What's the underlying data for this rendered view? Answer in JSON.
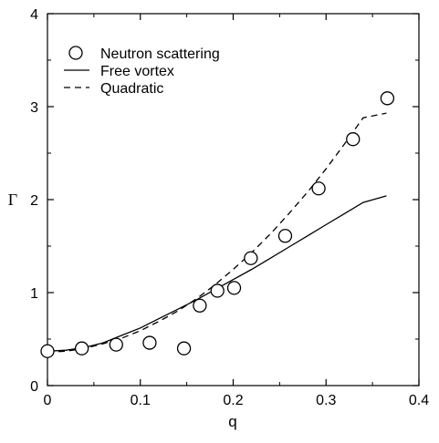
{
  "chart_data": {
    "type": "scatter",
    "xlabel": "q",
    "ylabel": "Γ",
    "xlim": [
      0,
      0.4
    ],
    "ylim": [
      0,
      4
    ],
    "xticks": [
      "0",
      "0.1",
      "0.2",
      "0.3",
      "0.4"
    ],
    "yticks": [
      "0",
      "1",
      "2",
      "3",
      "4"
    ],
    "grid": false,
    "legend": "top-left",
    "series": [
      {
        "name": "Neutron scattering",
        "style": "open-circle",
        "color": "#000000",
        "points": [
          [
            0.0,
            0.37
          ],
          [
            0.037,
            0.4
          ],
          [
            0.074,
            0.44
          ],
          [
            0.11,
            0.46
          ],
          [
            0.147,
            0.4
          ],
          [
            0.164,
            0.86
          ],
          [
            0.183,
            1.02
          ],
          [
            0.201,
            1.05
          ],
          [
            0.219,
            1.37
          ],
          [
            0.256,
            1.61
          ],
          [
            0.292,
            2.12
          ],
          [
            0.329,
            2.65
          ],
          [
            0.366,
            3.09
          ]
        ]
      },
      {
        "name": "Free vortex",
        "style": "solid-line",
        "color": "#000000",
        "points": [
          [
            0.0,
            0.37
          ],
          [
            0.02,
            0.38
          ],
          [
            0.04,
            0.41
          ],
          [
            0.06,
            0.46
          ],
          [
            0.08,
            0.54
          ],
          [
            0.1,
            0.62
          ],
          [
            0.12,
            0.72
          ],
          [
            0.14,
            0.82
          ],
          [
            0.16,
            0.92
          ],
          [
            0.18,
            1.03
          ],
          [
            0.2,
            1.14
          ],
          [
            0.22,
            1.25
          ],
          [
            0.24,
            1.37
          ],
          [
            0.26,
            1.49
          ],
          [
            0.28,
            1.61
          ],
          [
            0.3,
            1.73
          ],
          [
            0.32,
            1.85
          ],
          [
            0.34,
            1.97
          ],
          [
            0.365,
            2.04
          ]
        ]
      },
      {
        "name": "Quadratic",
        "style": "dashed-line",
        "color": "#000000",
        "points": [
          [
            0.0,
            0.36
          ],
          [
            0.02,
            0.37
          ],
          [
            0.04,
            0.4
          ],
          [
            0.06,
            0.45
          ],
          [
            0.08,
            0.51
          ],
          [
            0.1,
            0.59
          ],
          [
            0.12,
            0.69
          ],
          [
            0.14,
            0.8
          ],
          [
            0.16,
            0.93
          ],
          [
            0.18,
            1.08
          ],
          [
            0.2,
            1.25
          ],
          [
            0.22,
            1.43
          ],
          [
            0.24,
            1.63
          ],
          [
            0.26,
            1.85
          ],
          [
            0.28,
            2.08
          ],
          [
            0.3,
            2.33
          ],
          [
            0.32,
            2.6
          ],
          [
            0.34,
            2.88
          ],
          [
            0.365,
            2.93
          ]
        ]
      }
    ]
  }
}
